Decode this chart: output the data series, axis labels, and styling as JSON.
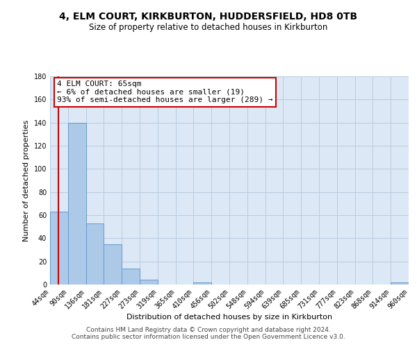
{
  "title": "4, ELM COURT, KIRKBURTON, HUDDERSFIELD, HD8 0TB",
  "subtitle": "Size of property relative to detached houses in Kirkburton",
  "xlabel": "Distribution of detached houses by size in Kirkburton",
  "ylabel": "Number of detached properties",
  "bin_edges": [
    44,
    90,
    136,
    181,
    227,
    273,
    319,
    365,
    410,
    456,
    502,
    548,
    594,
    639,
    685,
    731,
    777,
    823,
    868,
    914,
    960
  ],
  "bar_heights": [
    63,
    140,
    53,
    35,
    14,
    4,
    0,
    0,
    2,
    0,
    0,
    0,
    0,
    0,
    0,
    0,
    0,
    0,
    0,
    2
  ],
  "bar_color": "#adc9e8",
  "bar_edge_color": "#6699cc",
  "property_line_x": 65,
  "property_line_color": "#cc0000",
  "annotation_line1": "4 ELM COURT: 65sqm",
  "annotation_line2": "← 6% of detached houses are smaller (19)",
  "annotation_line3": "93% of semi-detached houses are larger (289) →",
  "annotation_box_color": "#ffffff",
  "annotation_box_edge_color": "#cc0000",
  "ylim": [
    0,
    180
  ],
  "yticks": [
    0,
    20,
    40,
    60,
    80,
    100,
    120,
    140,
    160,
    180
  ],
  "footer_line1": "Contains HM Land Registry data © Crown copyright and database right 2024.",
  "footer_line2": "Contains public sector information licensed under the Open Government Licence v3.0.",
  "background_color": "#ffffff",
  "plot_bg_color": "#dce8f5",
  "grid_color": "#b8cce0",
  "title_fontsize": 10,
  "subtitle_fontsize": 8.5,
  "axis_label_fontsize": 8,
  "tick_fontsize": 7,
  "annotation_fontsize": 8,
  "footer_fontsize": 6.5
}
